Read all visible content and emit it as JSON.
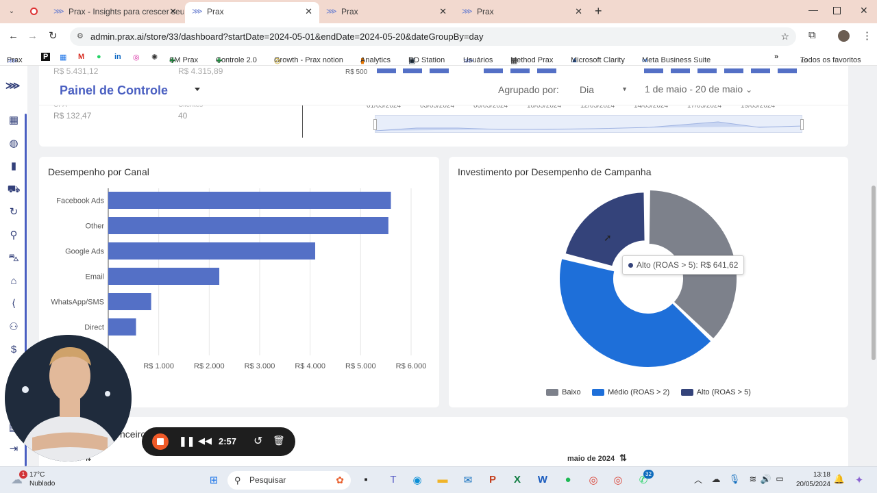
{
  "browser": {
    "tabs": [
      {
        "label": "Prax - Insights para crescer seu",
        "active": false
      },
      {
        "label": "Prax",
        "active": true
      },
      {
        "label": "Prax",
        "active": false
      },
      {
        "label": "Prax",
        "active": false
      }
    ],
    "url": "admin.prax.ai/store/33/dashboard?startDate=2024-05-01&endDate=2024-05-20&dateGroupBy=day",
    "bookmarks": [
      "Prax",
      "SM Prax",
      "Controle 2.0",
      "Growth - Prax notion",
      "Analytics",
      "RD Station",
      "Usuários",
      "Method Prax",
      "Microsoft Clarity",
      "Meta Business Suite"
    ],
    "all_bookmarks": "Todos os favoritos",
    "more": "»"
  },
  "header": {
    "title": "Painel de Controle",
    "group_label": "Agrupado por:",
    "group_value": "Dia",
    "date_range": "1 de maio - 20 de maio"
  },
  "top_stats": {
    "cut_values": [
      "R$ 5.431,12",
      "R$ 4.315,89",
      "R$ 500"
    ],
    "cpa_label": "CPA",
    "cpa_value": "R$ 132,47",
    "clients_label": "Clientes",
    "clients_value": "40",
    "timeline_dates": [
      "01/05/2024",
      "03/05/2024",
      "06/05/2024",
      "10/05/2024",
      "12/05/2024",
      "14/05/2024",
      "17/05/2024",
      "19/05/2024"
    ]
  },
  "channel_card": {
    "title": "Desempenho por Canal"
  },
  "campaign_card": {
    "title": "Investimento por Desempenho de Campanha",
    "tooltip": "Alto (ROAS > 5): R$ 641,62"
  },
  "bottom": {
    "partial_title": "nceiro",
    "month": "maio de 2024",
    "sort_icon": "sort-icon"
  },
  "recorder": {
    "time": "2:57"
  },
  "taskbar": {
    "temp": "17°C",
    "weather": "Nublado",
    "search": "Pesquisar",
    "time": "13:18",
    "date": "20/05/2024",
    "badge_chrome": "32",
    "badge_weather": "1"
  },
  "colors": {
    "brand": "#4a5fc1",
    "bar": "#5470c6",
    "baixo": "#7d818b",
    "medio": "#1e6fd9",
    "alto": "#34437a"
  },
  "chart_data": [
    {
      "type": "bar",
      "orientation": "horizontal",
      "categories": [
        "Facebook Ads",
        "Other",
        "Google Ads",
        "Email",
        "WhatsApp/SMS",
        "Direct"
      ],
      "values": [
        5600,
        5550,
        4100,
        2200,
        850,
        550
      ],
      "xticks": [
        "R$ 1.000",
        "R$ 2.000",
        "R$ 3.000",
        "R$ 4.000",
        "R$ 5.000",
        "R$ 6.000"
      ],
      "xlim": [
        0,
        6000
      ],
      "grid": true
    },
    {
      "type": "pie",
      "style": "donut",
      "labels": [
        "Baixo",
        "Médio (ROAS > 2)",
        "Alto (ROAS > 5)"
      ],
      "values": [
        1130,
        1270,
        641.62
      ],
      "legend": "bottom"
    }
  ]
}
